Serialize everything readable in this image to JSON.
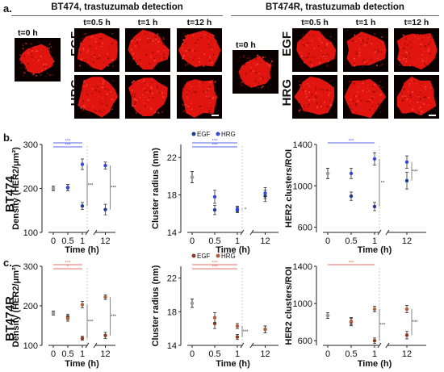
{
  "panel_a": {
    "label": "a.",
    "left_header": "BT474, trastuzumab detection",
    "right_header": "BT474R, trastuzumab detection",
    "t0_label": "t=0 h",
    "time_labels": [
      "t=0.5 h",
      "t=1 h",
      "t=12 h"
    ],
    "row_labels": [
      "EGF",
      "HRG"
    ]
  },
  "panel_b": {
    "label": "b.",
    "row_label": "BT474",
    "legend": [
      "EGF",
      "HRG"
    ]
  },
  "panel_c": {
    "label": "c.",
    "row_label": "BT474R",
    "legend": [
      "EGF",
      "HRG"
    ]
  },
  "colors": {
    "cell_red": "#e0150f",
    "b_egf": "#1f3a93",
    "b_hrg": "#3347d8",
    "c_egf": "#8b3a23",
    "c_hrg": "#b0623f",
    "b_sig_line": "#5566ee",
    "c_sig_line": "#e07060",
    "neutral": "#9a9a9a"
  },
  "chart_data": [
    {
      "id": "b-density",
      "type": "scatter",
      "ylabel": "Density (HER2/μm²)",
      "xlabel": "Time (h)",
      "x_ticks": [
        "0",
        "0.5",
        "1",
        "12"
      ],
      "y_ticks": [
        100,
        200,
        300
      ],
      "ylim": [
        100,
        300
      ],
      "series": [
        {
          "name": "EGF",
          "points": [
            [
              0,
              200,
              5
            ],
            [
              0.5,
              202,
              7
            ],
            [
              1,
              160,
              8
            ],
            [
              12,
              152,
              12
            ]
          ]
        },
        {
          "name": "HRG",
          "points": [
            [
              0,
              200,
              5
            ],
            [
              0.5,
              202,
              7
            ],
            [
              1,
              255,
              12
            ],
            [
              12,
              252,
              8
            ]
          ]
        }
      ],
      "significance": [
        "***",
        "***"
      ],
      "pair_significance": [
        "***",
        "***"
      ]
    },
    {
      "id": "b-radius",
      "type": "scatter",
      "ylabel": "Cluster radius (nm)",
      "xlabel": "Time (h)",
      "x_ticks": [
        "0",
        "0.5",
        "1",
        "12"
      ],
      "y_ticks": [
        14,
        18,
        22
      ],
      "ylim": [
        14,
        23.4
      ],
      "series": [
        {
          "name": "EGF",
          "points": [
            [
              0,
              19.9,
              0.6
            ],
            [
              0.5,
              16.4,
              0.5
            ],
            [
              1,
              16.4,
              0.3
            ],
            [
              12,
              17.9,
              0.6
            ]
          ]
        },
        {
          "name": "HRG",
          "points": [
            [
              0,
              19.9,
              0.6
            ],
            [
              0.5,
              17.8,
              0.7
            ],
            [
              1,
              16.5,
              0.3
            ],
            [
              12,
              18.2,
              0.6
            ]
          ]
        }
      ],
      "significance": [
        "***",
        "***"
      ],
      "pair_significance": [
        "*"
      ]
    },
    {
      "id": "b-clusters",
      "type": "scatter",
      "ylabel": "HER2 clusters/ROI",
      "xlabel": "Time (h)",
      "x_ticks": [
        "0",
        "0.5",
        "1",
        "12"
      ],
      "y_ticks": [
        600,
        1000,
        1400
      ],
      "ylim": [
        550,
        1400
      ],
      "series": [
        {
          "name": "EGF",
          "points": [
            [
              0,
              1120,
              50
            ],
            [
              0.5,
              900,
              40
            ],
            [
              1,
              800,
              40
            ],
            [
              12,
              1050,
              80
            ]
          ]
        },
        {
          "name": "HRG",
          "points": [
            [
              0,
              1120,
              50
            ],
            [
              0.5,
              1120,
              50
            ],
            [
              1,
              1260,
              60
            ],
            [
              12,
              1230,
              60
            ]
          ]
        }
      ],
      "significance": [
        "***"
      ],
      "pair_significance": [
        "**",
        "***"
      ]
    },
    {
      "id": "c-density",
      "type": "scatter",
      "ylabel": "Density (HER2/μm²)",
      "xlabel": "Time (h)",
      "x_ticks": [
        "0",
        "0.5",
        "1",
        "12"
      ],
      "y_ticks": [
        100,
        200,
        300
      ],
      "ylim": [
        100,
        300
      ],
      "series": [
        {
          "name": "EGF",
          "points": [
            [
              0,
              182,
              5
            ],
            [
              0.5,
              172,
              7
            ],
            [
              1,
              118,
              5
            ],
            [
              12,
              125,
              8
            ]
          ]
        },
        {
          "name": "HRG",
          "points": [
            [
              0,
              182,
              5
            ],
            [
              0.5,
              168,
              7
            ],
            [
              1,
              203,
              8
            ],
            [
              12,
              222,
              6
            ]
          ]
        }
      ],
      "significance": [
        "***",
        "*"
      ],
      "pair_significance": [
        "***",
        "***"
      ]
    },
    {
      "id": "c-radius",
      "type": "scatter",
      "ylabel": "Cluster radius (nm)",
      "xlabel": "Time (h)",
      "x_ticks": [
        "0",
        "0.5",
        "1",
        "12"
      ],
      "y_ticks": [
        14,
        18,
        22
      ],
      "ylim": [
        14,
        23.4
      ],
      "series": [
        {
          "name": "EGF",
          "points": [
            [
              0,
              19.0,
              0.5
            ],
            [
              0.5,
              16.6,
              0.6
            ],
            [
              1,
              15.0,
              0.3
            ],
            [
              12,
              15.9,
              0.4
            ]
          ]
        },
        {
          "name": "HRG",
          "points": [
            [
              0,
              19.0,
              0.5
            ],
            [
              0.5,
              17.3,
              0.6
            ],
            [
              1,
              16.3,
              0.3
            ],
            [
              12,
              15.9,
              0.4
            ]
          ]
        }
      ],
      "significance": [
        "***",
        "***"
      ],
      "pair_significance": [
        "***"
      ]
    },
    {
      "id": "c-clusters",
      "type": "scatter",
      "ylabel": "HER2 clusters/ROI",
      "xlabel": "Time (h)",
      "x_ticks": [
        "0",
        "0.5",
        "1",
        "12"
      ],
      "y_ticks": [
        600,
        1000,
        1400
      ],
      "ylim": [
        550,
        1400
      ],
      "series": [
        {
          "name": "EGF",
          "points": [
            [
              0,
              870,
              30
            ],
            [
              0.5,
              800,
              40
            ],
            [
              1,
              600,
              30
            ],
            [
              12,
              660,
              40
            ]
          ]
        },
        {
          "name": "HRG",
          "points": [
            [
              0,
              870,
              30
            ],
            [
              0.5,
              810,
              40
            ],
            [
              1,
              940,
              30
            ],
            [
              12,
              940,
              40
            ]
          ]
        }
      ],
      "significance": [
        "***"
      ],
      "pair_significance": [
        "***",
        "***"
      ]
    }
  ]
}
